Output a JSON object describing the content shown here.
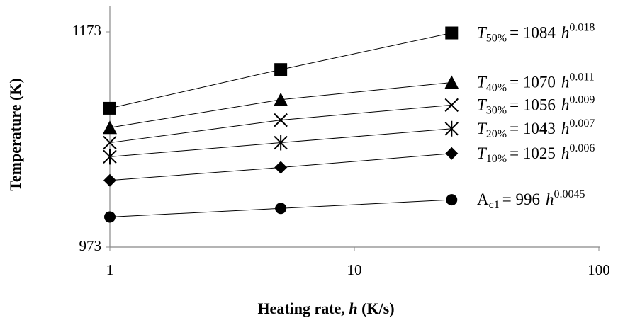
{
  "chart_data": {
    "type": "line",
    "y_label": "Temperature (K)",
    "x_label": {
      "text": "Heating rate,",
      "variable": "h",
      "unit": "(K/s)"
    },
    "x": [
      1,
      5,
      25
    ],
    "xlim": [
      1,
      100
    ],
    "xticks": [
      1,
      10,
      100
    ],
    "xscale": "log",
    "ylim": [
      973,
      1173
    ],
    "yticks": [
      973,
      1173
    ],
    "grid": false,
    "series": [
      {
        "name": {
          "symbol": "T",
          "symbol_italic": true,
          "subscript": "50%",
          "equation": "= 1084",
          "variable": "h",
          "exponent": "0.018"
        },
        "color": "#000000",
        "marker": "square",
        "values": [
          1102,
          1138,
          1172
        ]
      },
      {
        "name": {
          "symbol": "T",
          "symbol_italic": true,
          "subscript": "40%",
          "equation": "= 1070",
          "variable": "h",
          "exponent": "0.011"
        },
        "color": "#000000",
        "marker": "triangle",
        "values": [
          1084,
          1110,
          1126
        ]
      },
      {
        "name": {
          "symbol": "T",
          "symbol_italic": true,
          "subscript": "30%",
          "equation": "= 1056",
          "variable": "h",
          "exponent": "0.009"
        },
        "color": "#000000",
        "marker": "x",
        "values": [
          1070,
          1091,
          1105
        ]
      },
      {
        "name": {
          "symbol": "T",
          "symbol_italic": true,
          "subscript": "20%",
          "equation": "= 1043",
          "variable": "h",
          "exponent": "0.007"
        },
        "color": "#000000",
        "marker": "asterisk",
        "values": [
          1057,
          1070,
          1083
        ]
      },
      {
        "name": {
          "symbol": "T",
          "symbol_italic": true,
          "subscript": "10%",
          "equation": "= 1025",
          "variable": "h",
          "exponent": "0.006"
        },
        "color": "#000000",
        "marker": "diamond",
        "values": [
          1035,
          1047,
          1060
        ]
      },
      {
        "name": {
          "symbol": "A",
          "symbol_italic": false,
          "subscript": "c1",
          "equation": "= 996",
          "variable": "h",
          "exponent": "0.0045"
        },
        "color": "#000000",
        "marker": "circle",
        "values": [
          1001,
          1009,
          1017
        ]
      }
    ]
  }
}
